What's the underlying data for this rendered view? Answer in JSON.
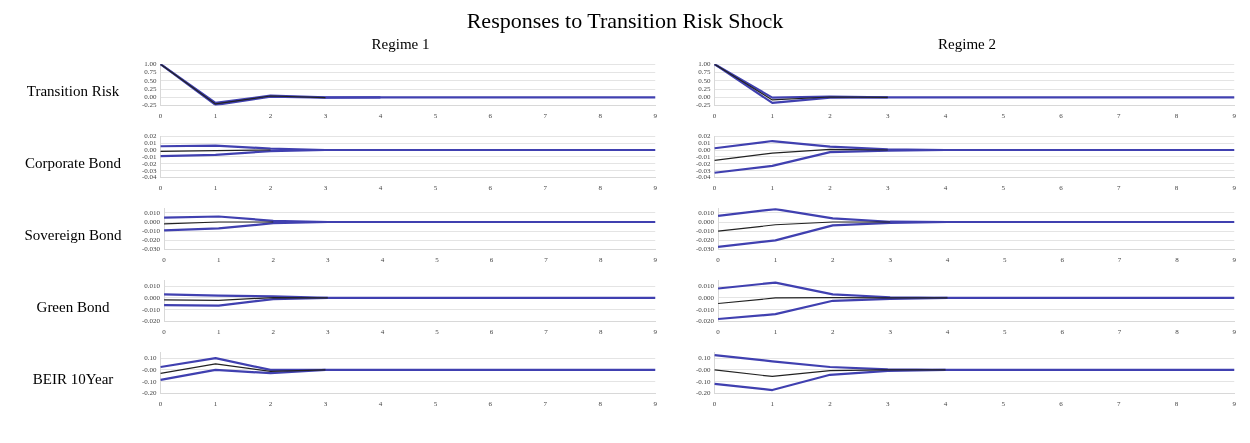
{
  "chart_data": [
    {
      "type": "line",
      "title": "Responses to Transition Risk Shock",
      "subtitle": "Regime 1",
      "ylabel": "Transition Risk",
      "categories": [
        "0",
        "1",
        "2",
        "3",
        "4",
        "5",
        "6",
        "7",
        "8",
        "9"
      ],
      "series": [
        {
          "color": "#4040b0",
          "values": [
            1,
            -0.23,
            0.02,
            -0.01,
            0,
            0,
            0,
            0,
            0,
            0
          ]
        },
        {
          "color": "#222222",
          "values": [
            1,
            -0.2,
            0.04,
            -0.01,
            null,
            null,
            null,
            null,
            null,
            null
          ]
        },
        {
          "color": "#4040b0",
          "values": [
            1,
            -0.17,
            0.05,
            0,
            0,
            null,
            null,
            null,
            null,
            null
          ]
        }
      ],
      "ylim": [
        -0.25,
        1
      ],
      "yticks": [
        {
          "value": -0.25,
          "label": "-0.25"
        },
        {
          "value": 0,
          "label": "0.00"
        },
        {
          "value": 0.25,
          "label": "0.25"
        },
        {
          "value": 0.5,
          "label": "0.50"
        },
        {
          "value": 0.75,
          "label": "0.75"
        },
        {
          "value": 1,
          "label": "1.00"
        }
      ],
      "grid": "y",
      "legend": false
    },
    {
      "type": "line",
      "subtitle": "Regime 2",
      "categories": [
        "0",
        "1",
        "2",
        "3",
        "4",
        "5",
        "6",
        "7",
        "8",
        "9"
      ],
      "series": [
        {
          "color": "#4040b0",
          "values": [
            1,
            -0.17,
            -0.01,
            0,
            0,
            0,
            0,
            0,
            0,
            0
          ]
        },
        {
          "color": "#222222",
          "values": [
            1,
            -0.08,
            0.01,
            0,
            null,
            null,
            null,
            null,
            null,
            null
          ]
        },
        {
          "color": "#4040b0",
          "values": [
            1,
            -0.01,
            0.02,
            0,
            null,
            null,
            null,
            null,
            null,
            null
          ]
        }
      ],
      "ylim": [
        -0.25,
        1
      ],
      "yticks": [
        {
          "value": -0.25,
          "label": "-0.25"
        },
        {
          "value": 0,
          "label": "0.00"
        },
        {
          "value": 0.25,
          "label": "0.25"
        },
        {
          "value": 0.5,
          "label": "0.50"
        },
        {
          "value": 0.75,
          "label": "0.75"
        },
        {
          "value": 1,
          "label": "1.00"
        }
      ],
      "grid": "y",
      "legend": false
    },
    {
      "type": "line",
      "ylabel": "Corporate Bond",
      "categories": [
        "0",
        "1",
        "2",
        "3",
        "4",
        "5",
        "6",
        "7",
        "8",
        "9"
      ],
      "series": [
        {
          "color": "#4040b0",
          "values": [
            -0.009,
            -0.007,
            -0.0015,
            0,
            0,
            0,
            0,
            0,
            0,
            0
          ]
        },
        {
          "color": "#222222",
          "values": [
            -0.002,
            -0.001,
            0,
            null,
            null,
            null,
            null,
            null,
            null,
            null
          ]
        },
        {
          "color": "#4040b0",
          "values": [
            0.0054,
            0.0064,
            0.002,
            0,
            null,
            null,
            null,
            null,
            null,
            null
          ]
        }
      ],
      "ylim": [
        -0.04,
        0.02
      ],
      "yticks": [
        {
          "value": -0.04,
          "label": "-0.04"
        },
        {
          "value": -0.03,
          "label": "-0.03"
        },
        {
          "value": -0.02,
          "label": "-0.02"
        },
        {
          "value": -0.01,
          "label": "-0.01"
        },
        {
          "value": 0,
          "label": "0.00"
        },
        {
          "value": 0.01,
          "label": "0.01"
        },
        {
          "value": 0.02,
          "label": "0.02"
        }
      ],
      "grid": "y",
      "legend": false
    },
    {
      "type": "line",
      "categories": [
        "0",
        "1",
        "2",
        "3",
        "4",
        "5",
        "6",
        "7",
        "8",
        "9"
      ],
      "series": [
        {
          "color": "#4040b0",
          "values": [
            -0.033,
            -0.023,
            -0.003,
            -0.001,
            0,
            0,
            0,
            0,
            0,
            0
          ]
        },
        {
          "color": "#222222",
          "values": [
            -0.015,
            -0.0046,
            0.001,
            0,
            null,
            null,
            null,
            null,
            null,
            null
          ]
        },
        {
          "color": "#4040b0",
          "values": [
            0.0025,
            0.013,
            0.005,
            0.001,
            0,
            null,
            null,
            null,
            null,
            null
          ]
        }
      ],
      "ylim": [
        -0.04,
        0.02
      ],
      "yticks": [
        {
          "value": -0.04,
          "label": "-0.04"
        },
        {
          "value": -0.03,
          "label": "-0.03"
        },
        {
          "value": -0.02,
          "label": "-0.02"
        },
        {
          "value": -0.01,
          "label": "-0.01"
        },
        {
          "value": 0,
          "label": "0.00"
        },
        {
          "value": 0.01,
          "label": "0.01"
        },
        {
          "value": 0.02,
          "label": "0.02"
        }
      ],
      "grid": "y",
      "legend": false
    },
    {
      "type": "line",
      "ylabel": "Sovereign Bond",
      "categories": [
        "0",
        "1",
        "2",
        "3",
        "4",
        "5",
        "6",
        "7",
        "8",
        "9"
      ],
      "series": [
        {
          "color": "#4040b0",
          "values": [
            -0.009,
            -0.007,
            -0.0013,
            0,
            0,
            0,
            0,
            0,
            0,
            0
          ]
        },
        {
          "color": "#222222",
          "values": [
            -0.002,
            0,
            0,
            null,
            null,
            null,
            null,
            null,
            null,
            null
          ]
        },
        {
          "color": "#4040b0",
          "values": [
            0.0047,
            0.006,
            0.0013,
            0,
            null,
            null,
            null,
            null,
            null,
            null
          ]
        }
      ],
      "ylim": [
        -0.03,
        0.015
      ],
      "yticks": [
        {
          "value": -0.03,
          "label": "-0.030"
        },
        {
          "value": -0.02,
          "label": "-0.020"
        },
        {
          "value": -0.01,
          "label": "-0.010"
        },
        {
          "value": 0,
          "label": "0.000"
        },
        {
          "value": 0.01,
          "label": "0.010"
        }
      ],
      "grid": "y",
      "legend": false
    },
    {
      "type": "line",
      "categories": [
        "0",
        "1",
        "2",
        "3",
        "4",
        "5",
        "6",
        "7",
        "8",
        "9"
      ],
      "series": [
        {
          "color": "#4040b0",
          "values": [
            -0.027,
            -0.02,
            -0.0037,
            -0.001,
            0,
            0,
            0,
            0,
            0,
            0
          ]
        },
        {
          "color": "#222222",
          "values": [
            -0.01,
            -0.003,
            0,
            0,
            null,
            null,
            null,
            null,
            null,
            null
          ]
        },
        {
          "color": "#4040b0",
          "values": [
            0.0066,
            0.014,
            0.004,
            0.0003,
            0,
            null,
            null,
            null,
            null,
            null
          ]
        }
      ],
      "ylim": [
        -0.03,
        0.015
      ],
      "yticks": [
        {
          "value": -0.03,
          "label": "-0.030"
        },
        {
          "value": -0.02,
          "label": "-0.020"
        },
        {
          "value": -0.01,
          "label": "-0.010"
        },
        {
          "value": 0,
          "label": "0.000"
        },
        {
          "value": 0.01,
          "label": "0.010"
        }
      ],
      "grid": "y",
      "legend": false
    },
    {
      "type": "line",
      "ylabel": "Green Bond",
      "categories": [
        "0",
        "1",
        "2",
        "3",
        "4",
        "5",
        "6",
        "7",
        "8",
        "9"
      ],
      "series": [
        {
          "color": "#4040b0",
          "values": [
            -0.006,
            -0.0065,
            -0.001,
            0,
            0,
            0,
            0,
            0,
            0,
            0
          ]
        },
        {
          "color": "#222222",
          "values": [
            -0.0016,
            -0.002,
            0.0003,
            0,
            null,
            null,
            null,
            null,
            null,
            null
          ]
        },
        {
          "color": "#4040b0",
          "values": [
            0.003,
            0.002,
            0.0014,
            0,
            null,
            null,
            null,
            null,
            null,
            null
          ]
        }
      ],
      "ylim": [
        -0.02,
        0.015
      ],
      "yticks": [
        {
          "value": -0.02,
          "label": "-0.020"
        },
        {
          "value": -0.01,
          "label": "-0.010"
        },
        {
          "value": 0,
          "label": "0.000"
        },
        {
          "value": 0.01,
          "label": "0.010"
        }
      ],
      "grid": "y",
      "legend": false
    },
    {
      "type": "line",
      "categories": [
        "0",
        "1",
        "2",
        "3",
        "4",
        "5",
        "6",
        "7",
        "8",
        "9"
      ],
      "series": [
        {
          "color": "#4040b0",
          "values": [
            -0.0178,
            -0.0137,
            -0.0024,
            -0.0008,
            0,
            0,
            0,
            0,
            0,
            0
          ]
        },
        {
          "color": "#222222",
          "values": [
            -0.0047,
            0,
            0.0003,
            0,
            0,
            null,
            null,
            null,
            null,
            null
          ]
        },
        {
          "color": "#4040b0",
          "values": [
            0.008,
            0.013,
            0.003,
            0.0006,
            0,
            null,
            null,
            null,
            null,
            null
          ]
        }
      ],
      "ylim": [
        -0.02,
        0.015
      ],
      "yticks": [
        {
          "value": -0.02,
          "label": "-0.020"
        },
        {
          "value": -0.01,
          "label": "-0.010"
        },
        {
          "value": 0,
          "label": "0.000"
        },
        {
          "value": 0.01,
          "label": "0.010"
        }
      ],
      "grid": "y",
      "legend": false
    },
    {
      "type": "line",
      "ylabel": "BEIR 10Year",
      "categories": [
        "0",
        "1",
        "2",
        "3",
        "4",
        "5",
        "6",
        "7",
        "8",
        "9"
      ],
      "series": [
        {
          "color": "#4040b0",
          "values": [
            -0.084,
            0,
            -0.027,
            0,
            0,
            0,
            0,
            0,
            0,
            0
          ]
        },
        {
          "color": "#222222",
          "values": [
            -0.029,
            0.051,
            -0.012,
            0,
            null,
            null,
            null,
            null,
            null,
            null
          ]
        },
        {
          "color": "#4040b0",
          "values": [
            0.025,
            0.1,
            0,
            0,
            null,
            null,
            null,
            null,
            null,
            null
          ]
        }
      ],
      "ylim": [
        -0.2,
        0.15
      ],
      "yticks": [
        {
          "value": -0.2,
          "label": "-0.20"
        },
        {
          "value": -0.1,
          "label": "-0.10"
        },
        {
          "value": 0,
          "label": "-0.00"
        },
        {
          "value": 0.1,
          "label": "0.10"
        }
      ],
      "grid": "y",
      "legend": false
    },
    {
      "type": "line",
      "categories": [
        "0",
        "1",
        "2",
        "3",
        "4",
        "5",
        "6",
        "7",
        "8",
        "9"
      ],
      "series": [
        {
          "color": "#4040b0",
          "values": [
            -0.118,
            -0.17,
            -0.041,
            -0.008,
            0,
            0,
            0,
            0,
            0,
            0
          ]
        },
        {
          "color": "#222222",
          "values": [
            0,
            -0.055,
            -0.006,
            0,
            0,
            null,
            null,
            null,
            null,
            null
          ]
        },
        {
          "color": "#4040b0",
          "values": [
            0.125,
            0.073,
            0.025,
            0.005,
            0,
            null,
            null,
            null,
            null,
            null
          ]
        }
      ],
      "ylim": [
        -0.2,
        0.15
      ],
      "yticks": [
        {
          "value": -0.2,
          "label": "-0.20"
        },
        {
          "value": -0.1,
          "label": "-0.10"
        },
        {
          "value": 0,
          "label": "-0.00"
        },
        {
          "value": 0.1,
          "label": "0.10"
        }
      ],
      "grid": "y",
      "legend": false
    }
  ]
}
